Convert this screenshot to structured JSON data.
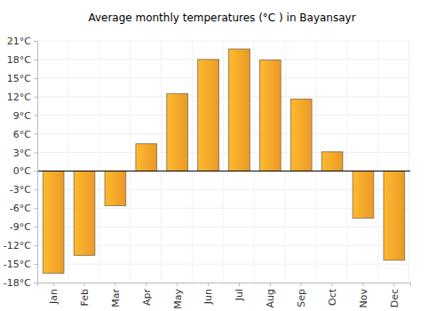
{
  "chart_data": {
    "type": "bar",
    "title": "Average monthly temperatures (°C ) in Bayansayr",
    "categories": [
      "Jan",
      "Feb",
      "Mar",
      "Apr",
      "May",
      "Jun",
      "Jul",
      "Aug",
      "Sep",
      "Oct",
      "Nov",
      "Dec"
    ],
    "values": [
      -16.5,
      -13.6,
      -5.6,
      4.4,
      12.5,
      18.0,
      19.7,
      17.9,
      11.6,
      3.1,
      -7.6,
      -14.4
    ],
    "color": "#f7a128",
    "ylim": [
      -18,
      21
    ],
    "yticks": [
      {
        "value": -18,
        "label": "-18°C"
      },
      {
        "value": -15,
        "label": "-15°C"
      },
      {
        "value": -12,
        "label": "-12°C"
      },
      {
        "value": -9,
        "label": "-9°C"
      },
      {
        "value": -6,
        "label": "-6°C"
      },
      {
        "value": -3,
        "label": "-3°C"
      },
      {
        "value": 0,
        "label": "0°C"
      },
      {
        "value": 3,
        "label": "3°C"
      },
      {
        "value": 6,
        "label": "6°C"
      },
      {
        "value": 9,
        "label": "9°C"
      },
      {
        "value": 12,
        "label": "12°C"
      },
      {
        "value": 15,
        "label": "15°C"
      },
      {
        "value": 18,
        "label": "18°C"
      },
      {
        "value": 21,
        "label": "21°C"
      }
    ],
    "grid": true
  }
}
